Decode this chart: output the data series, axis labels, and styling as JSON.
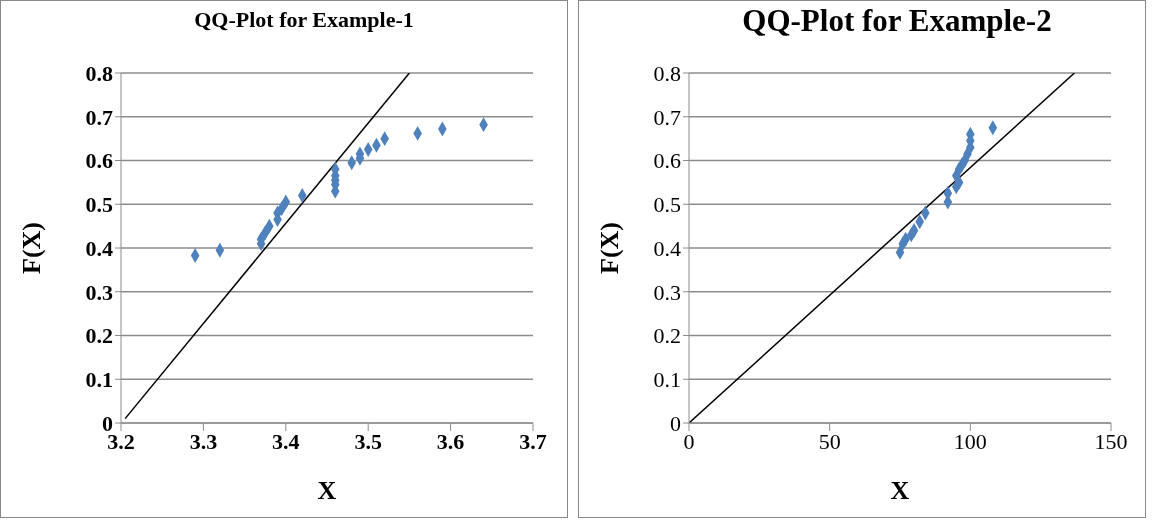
{
  "chart_data": [
    {
      "type": "scatter",
      "title": "QQ-Plot for Example-1",
      "xlabel": "X",
      "ylabel": "F(X)",
      "xlim": [
        3.2,
        3.7
      ],
      "xticks": [
        3.2,
        3.3,
        3.4,
        3.5,
        3.6,
        3.7
      ],
      "ylim": [
        0,
        0.8
      ],
      "yticks": [
        0,
        0.1,
        0.2,
        0.3,
        0.4,
        0.5,
        0.6,
        0.7,
        0.8
      ],
      "grid": "y",
      "series": [
        {
          "color": "#4f81bd",
          "marker": "diamond",
          "x": [
            3.29,
            3.32,
            3.37,
            3.37,
            3.375,
            3.38,
            3.39,
            3.39,
            3.395,
            3.4,
            3.42,
            3.46,
            3.46,
            3.46,
            3.46,
            3.46,
            3.48,
            3.49,
            3.49,
            3.5,
            3.51,
            3.52,
            3.56,
            3.59,
            3.64
          ],
          "values": [
            0.383,
            0.395,
            0.41,
            0.42,
            0.435,
            0.45,
            0.465,
            0.48,
            0.49,
            0.505,
            0.52,
            0.53,
            0.545,
            0.555,
            0.565,
            0.58,
            0.595,
            0.605,
            0.615,
            0.625,
            0.635,
            0.65,
            0.662,
            0.672,
            0.682
          ]
        },
        {
          "type": "line",
          "color": "#000000",
          "x": [
            3.205,
            3.55
          ],
          "values": [
            0.01,
            0.8
          ]
        }
      ]
    },
    {
      "type": "scatter",
      "title": "QQ-Plot for Example-2",
      "xlabel": "X",
      "ylabel": "F(X)",
      "xlim": [
        0,
        150
      ],
      "xticks": [
        0,
        50,
        100,
        150
      ],
      "ylim": [
        0,
        0.8
      ],
      "yticks": [
        0,
        0.1,
        0.2,
        0.3,
        0.4,
        0.5,
        0.6,
        0.7,
        0.8
      ],
      "grid": "y",
      "series": [
        {
          "color": "#4f81bd",
          "marker": "diamond",
          "x": [
            75,
            76,
            77,
            79,
            80,
            82,
            84,
            92,
            92,
            95,
            96,
            95,
            96,
            97,
            98,
            99,
            100,
            100,
            100,
            108
          ],
          "values": [
            0.39,
            0.41,
            0.42,
            0.43,
            0.44,
            0.46,
            0.48,
            0.505,
            0.525,
            0.54,
            0.55,
            0.565,
            0.58,
            0.59,
            0.6,
            0.615,
            0.63,
            0.645,
            0.66,
            0.675
          ]
        },
        {
          "type": "line",
          "color": "#000000",
          "x": [
            0,
            137
          ],
          "values": [
            0,
            0.8
          ]
        }
      ]
    }
  ]
}
